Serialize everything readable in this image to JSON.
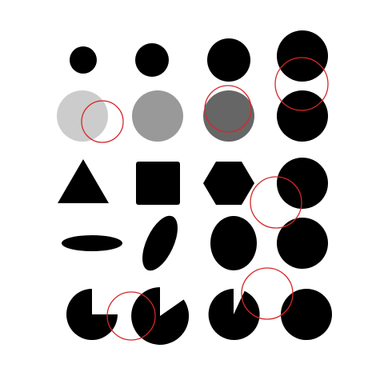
{
  "colors": {
    "background": "#ffffff",
    "shape_fill": "#000000",
    "shade_light": "#cccccc",
    "shade_mid": "#999999",
    "shade_dark": "#666666",
    "marker_stroke": "#d62728"
  },
  "grid": {
    "rows": 5,
    "columns": 4
  },
  "rows": [
    {
      "name": "size-row",
      "items": [
        {
          "shape": "circle",
          "size": "small"
        },
        {
          "shape": "circle",
          "size": "medium"
        },
        {
          "shape": "circle",
          "size": "large"
        },
        {
          "shape": "circle",
          "size": "extra-large"
        }
      ]
    },
    {
      "name": "shade-row",
      "items": [
        {
          "shape": "circle",
          "shade": "light"
        },
        {
          "shape": "circle",
          "shade": "mid"
        },
        {
          "shape": "circle",
          "shade": "dark"
        },
        {
          "shape": "circle",
          "shade": "black"
        }
      ]
    },
    {
      "name": "polygon-row",
      "items": [
        {
          "shape": "triangle"
        },
        {
          "shape": "rounded-square"
        },
        {
          "shape": "hexagon"
        },
        {
          "shape": "circle"
        }
      ]
    },
    {
      "name": "ellipse-row",
      "items": [
        {
          "shape": "ellipse",
          "orientation": "flat"
        },
        {
          "shape": "ellipse",
          "orientation": "tilted"
        },
        {
          "shape": "ellipse",
          "orientation": "upright"
        },
        {
          "shape": "circle"
        }
      ]
    },
    {
      "name": "pie-row",
      "items": [
        {
          "shape": "pie",
          "missing_fraction": 0.25
        },
        {
          "shape": "pie",
          "missing_fraction": 0.125
        },
        {
          "shape": "pie",
          "missing_fraction": 0.06
        },
        {
          "shape": "circle"
        }
      ]
    }
  ],
  "markers": [
    {
      "name": "red-ring-1",
      "shape": "circle-outline"
    },
    {
      "name": "red-ring-2",
      "shape": "circle-outline"
    },
    {
      "name": "red-ring-3",
      "shape": "circle-outline"
    },
    {
      "name": "red-ring-4",
      "shape": "circle-outline"
    },
    {
      "name": "red-ring-5",
      "shape": "circle-outline"
    },
    {
      "name": "red-ring-6",
      "shape": "circle-outline"
    }
  ]
}
